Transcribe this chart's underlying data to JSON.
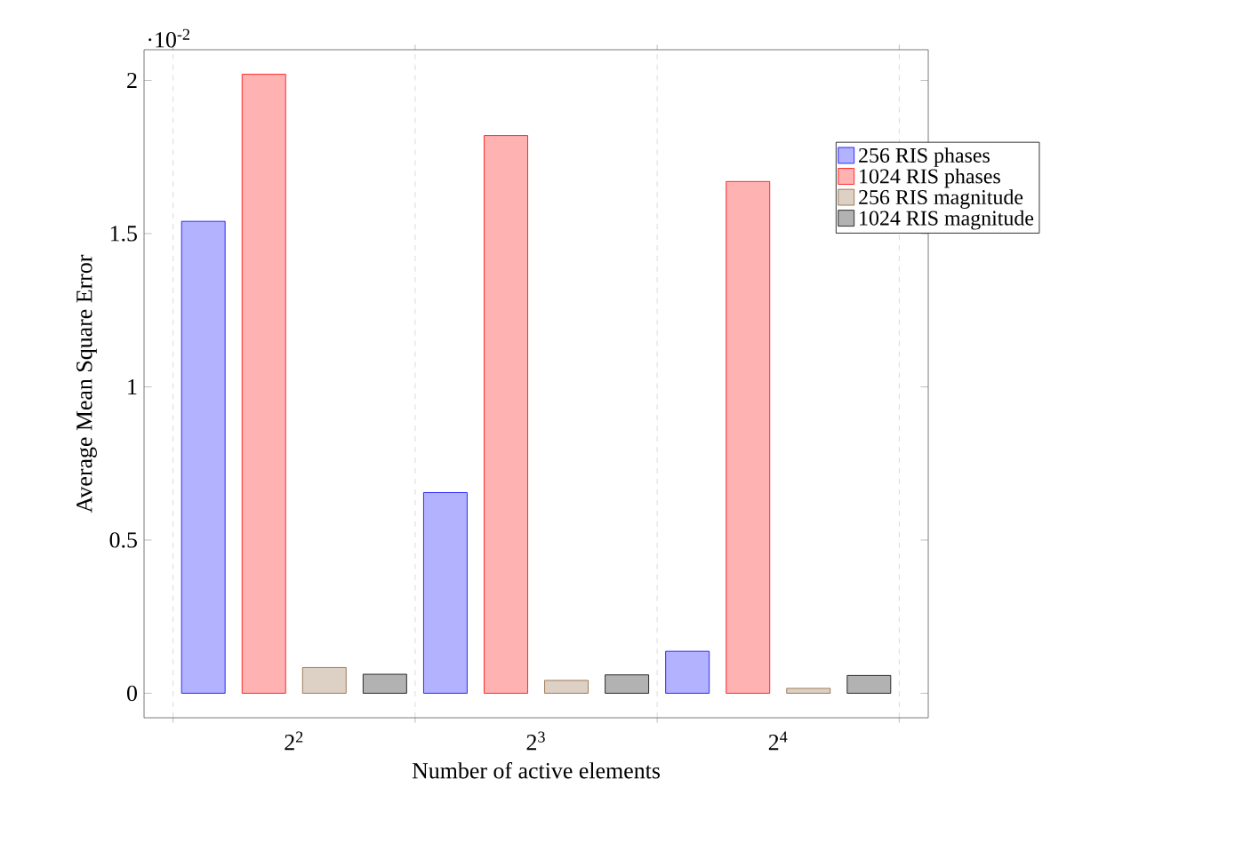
{
  "chart_data": {
    "type": "bar",
    "xlabel": "Number of active elements",
    "ylabel": "Average Mean Square Error",
    "categories": [
      "2$^{2}$",
      "2$^{3}$",
      "2$^{4}$"
    ],
    "series": [
      {
        "name": "256 RIS phases",
        "color": "#0000ff",
        "values": [
          1.54,
          0.655,
          0.137
        ]
      },
      {
        "name": "1024 RIS phases",
        "color": "#ff0000",
        "values": [
          2.02,
          1.82,
          1.67
        ]
      },
      {
        "name": "256 RIS magnitude",
        "color": "#8c6239",
        "values": [
          0.084,
          0.042,
          0.016
        ]
      },
      {
        "name": "1024 RIS magnitude",
        "color": "#000000",
        "values": [
          0.062,
          0.06,
          0.058
        ]
      }
    ],
    "ylim": [
      -0.08,
      2.1
    ],
    "yticks": [
      0,
      0.5,
      1,
      1.5,
      2
    ],
    "grid": "x",
    "legend": "top right",
    "annotations": [
      "·10$^{-2}$"
    ]
  }
}
